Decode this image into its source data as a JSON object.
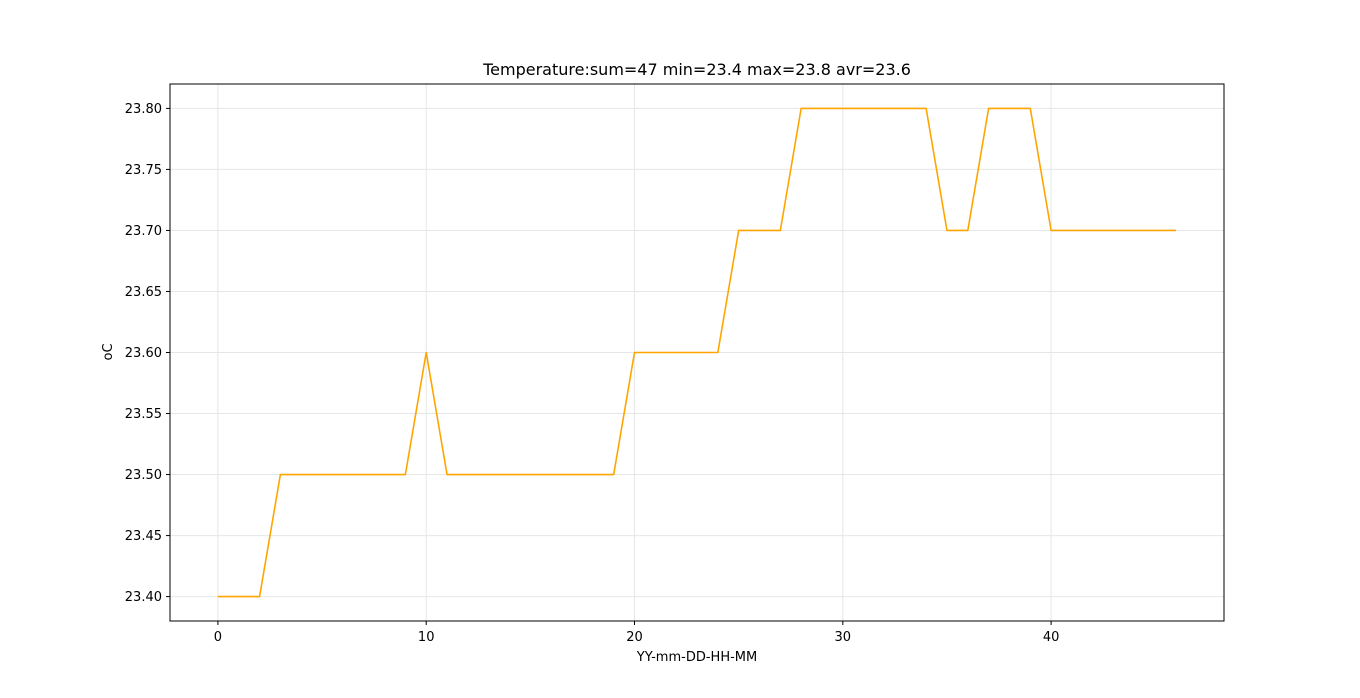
{
  "chart_data": {
    "type": "line",
    "title": "Temperature:sum=47 min=23.4 max=23.8 avr=23.6",
    "xlabel": "YY-mm-DD-HH-MM",
    "ylabel": "oC",
    "xlim": [
      -2.3,
      48.3
    ],
    "ylim": [
      23.38,
      23.82
    ],
    "x_ticks": [
      0,
      10,
      20,
      30,
      40
    ],
    "x_tick_labels": [
      "0",
      "10",
      "20",
      "30",
      "40"
    ],
    "y_ticks": [
      23.4,
      23.45,
      23.5,
      23.55,
      23.6,
      23.65,
      23.7,
      23.75,
      23.8
    ],
    "y_tick_labels": [
      "23.40",
      "23.45",
      "23.50",
      "23.55",
      "23.60",
      "23.65",
      "23.70",
      "23.75",
      "23.80"
    ],
    "grid": true,
    "series": [
      {
        "color": "#FFA500",
        "x": [
          0,
          1,
          2,
          3,
          4,
          5,
          6,
          7,
          8,
          9,
          10,
          11,
          12,
          13,
          14,
          15,
          16,
          17,
          18,
          19,
          20,
          21,
          22,
          23,
          24,
          25,
          26,
          27,
          28,
          29,
          30,
          31,
          32,
          33,
          34,
          35,
          36,
          37,
          38,
          39,
          40,
          41,
          42,
          43,
          44,
          45,
          46
        ],
        "values": [
          23.4,
          23.4,
          23.4,
          23.5,
          23.5,
          23.5,
          23.5,
          23.5,
          23.5,
          23.5,
          23.6,
          23.5,
          23.5,
          23.5,
          23.5,
          23.5,
          23.5,
          23.5,
          23.5,
          23.5,
          23.6,
          23.6,
          23.6,
          23.6,
          23.6,
          23.7,
          23.7,
          23.7,
          23.8,
          23.8,
          23.8,
          23.8,
          23.8,
          23.8,
          23.8,
          23.7,
          23.7,
          23.8,
          23.8,
          23.8,
          23.7,
          23.7,
          23.7,
          23.7,
          23.7,
          23.7,
          23.7
        ]
      }
    ]
  }
}
